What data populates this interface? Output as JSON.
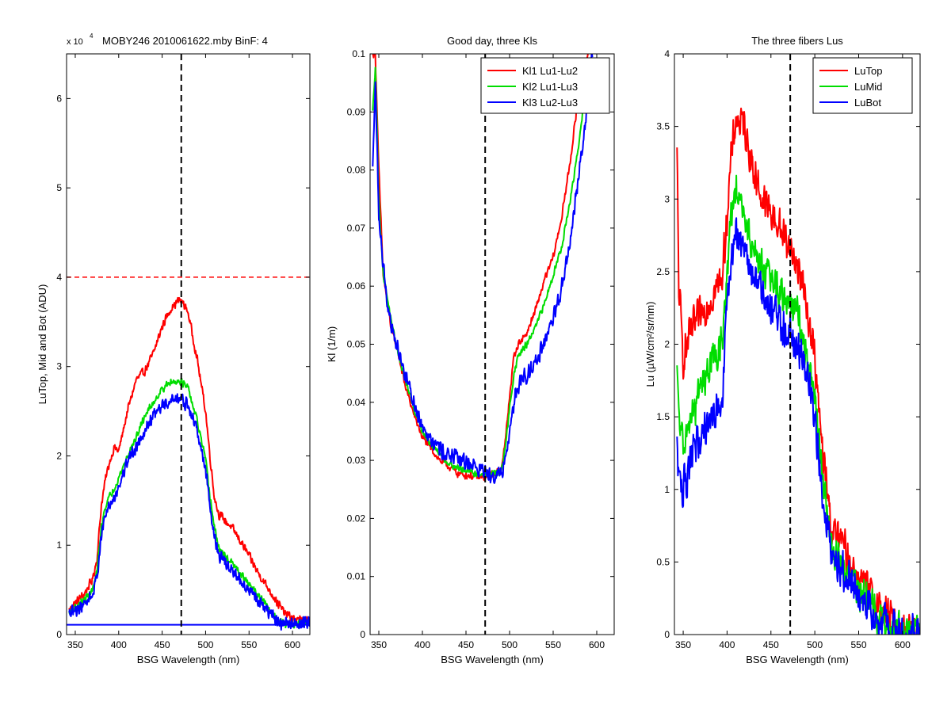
{
  "figure": {
    "colors": {
      "red": "#ff0000",
      "green": "#00dd00",
      "blue": "#0000ff",
      "black": "#000000"
    }
  },
  "chart_data": [
    {
      "type": "line",
      "title": "MOBY246  2010061622.mby BinF: 4",
      "xlabel": "BSG Wavelength (nm)",
      "ylabel": "LuTop, Mid and Bot (ADU)",
      "exponent_label": "x 10",
      "exponent_power": "4",
      "xlim": [
        340,
        620
      ],
      "ylim": [
        0,
        6.5
      ],
      "xticks": [
        350,
        400,
        450,
        500,
        550,
        600
      ],
      "yticks": [
        0,
        1,
        2,
        3,
        4,
        5,
        6
      ],
      "grid": false,
      "legend": null,
      "vline": {
        "x": 472,
        "style": "dashed",
        "color": "#000000"
      },
      "hlines": [
        {
          "y": 4.0,
          "style": "dashed",
          "color": "#ff0000"
        },
        {
          "y": 0.11,
          "style": "solid",
          "color": "#0000ff"
        }
      ],
      "series": [
        {
          "color": "#ff0000",
          "noise": 0.06,
          "x": [
            343,
            350,
            360,
            370,
            375,
            380,
            385,
            390,
            395,
            400,
            410,
            420,
            430,
            440,
            450,
            460,
            470,
            475,
            480,
            490,
            500,
            505,
            510,
            515,
            520,
            530,
            540,
            550,
            560,
            570,
            580,
            590,
            600,
            610,
            620
          ],
          "y": [
            0.28,
            0.35,
            0.45,
            0.62,
            0.85,
            1.45,
            1.75,
            1.95,
            2.1,
            2.05,
            2.5,
            2.85,
            2.95,
            3.15,
            3.45,
            3.65,
            3.75,
            3.7,
            3.6,
            3.1,
            2.5,
            2.0,
            1.55,
            1.35,
            1.3,
            1.2,
            1.05,
            0.88,
            0.7,
            0.55,
            0.4,
            0.25,
            0.18,
            0.16,
            0.15
          ]
        },
        {
          "color": "#00dd00",
          "noise": 0.05,
          "x": [
            343,
            350,
            360,
            370,
            375,
            380,
            385,
            390,
            395,
            400,
            410,
            420,
            430,
            440,
            450,
            460,
            470,
            475,
            480,
            490,
            500,
            505,
            510,
            515,
            520,
            530,
            540,
            550,
            560,
            570,
            580,
            590,
            600,
            610,
            620
          ],
          "y": [
            0.25,
            0.3,
            0.38,
            0.5,
            0.7,
            1.2,
            1.45,
            1.55,
            1.65,
            1.75,
            2.0,
            2.2,
            2.45,
            2.6,
            2.75,
            2.82,
            2.85,
            2.8,
            2.75,
            2.4,
            1.95,
            1.55,
            1.2,
            0.98,
            0.9,
            0.8,
            0.68,
            0.56,
            0.45,
            0.32,
            0.2,
            0.12,
            0.12,
            0.12,
            0.12
          ]
        },
        {
          "color": "#0000ff",
          "noise": 0.09,
          "x": [
            343,
            350,
            360,
            370,
            375,
            380,
            385,
            390,
            395,
            400,
            410,
            420,
            430,
            440,
            450,
            460,
            470,
            475,
            480,
            490,
            500,
            505,
            510,
            515,
            520,
            530,
            540,
            550,
            560,
            570,
            580,
            590,
            600,
            610,
            620
          ],
          "y": [
            0.22,
            0.27,
            0.34,
            0.45,
            0.65,
            1.1,
            1.35,
            1.45,
            1.55,
            1.65,
            1.95,
            2.1,
            2.3,
            2.45,
            2.55,
            2.62,
            2.65,
            2.6,
            2.55,
            2.3,
            1.85,
            1.45,
            1.1,
            0.9,
            0.82,
            0.72,
            0.6,
            0.5,
            0.38,
            0.27,
            0.17,
            0.12,
            0.12,
            0.12,
            0.12
          ]
        }
      ]
    },
    {
      "type": "line",
      "title": "Good day, three Kls",
      "xlabel": "BSG Wavelength (nm)",
      "ylabel": "Kl (1/m)",
      "xlim": [
        340,
        620
      ],
      "ylim": [
        0,
        0.1
      ],
      "xticks": [
        350,
        400,
        450,
        500,
        550,
        600
      ],
      "yticks": [
        0,
        0.01,
        0.02,
        0.03,
        0.04,
        0.05,
        0.06,
        0.07,
        0.08,
        0.09,
        0.1
      ],
      "ytick_labels": [
        "0",
        "0.01",
        "0.02",
        "0.03",
        "0.04",
        "0.05",
        "0.06",
        "0.07",
        "0.08",
        "0.09",
        "0.1"
      ],
      "grid": false,
      "legend": {
        "position": "top-right",
        "entries": [
          "Kl1 Lu1-Lu2",
          "Kl2 Lu1-Lu3",
          "Kl3 Lu2-Lu3"
        ]
      },
      "vline": {
        "x": 472,
        "style": "dashed",
        "color": "#000000"
      },
      "hlines": [],
      "series": [
        {
          "name": "Kl1 Lu1-Lu2",
          "color": "#ff0000",
          "noise": 0.0008,
          "x": [
            343,
            346,
            350,
            355,
            360,
            365,
            370,
            380,
            390,
            400,
            410,
            420,
            430,
            440,
            450,
            460,
            470,
            475,
            480,
            485,
            490,
            495,
            500,
            505,
            510,
            520,
            530,
            540,
            550,
            560,
            570,
            580,
            590
          ],
          "y": [
            0.1,
            0.1,
            0.08,
            0.062,
            0.057,
            0.052,
            0.05,
            0.043,
            0.038,
            0.034,
            0.032,
            0.03,
            0.029,
            0.0278,
            0.0275,
            0.0272,
            0.027,
            0.0272,
            0.0275,
            0.0278,
            0.0285,
            0.033,
            0.041,
            0.048,
            0.05,
            0.052,
            0.056,
            0.061,
            0.065,
            0.072,
            0.082,
            0.094,
            0.1
          ]
        },
        {
          "name": "Kl2 Lu1-Lu3",
          "color": "#00dd00",
          "noise": 0.0007,
          "x": [
            343,
            346,
            350,
            355,
            360,
            365,
            370,
            380,
            390,
            400,
            410,
            420,
            430,
            440,
            450,
            460,
            470,
            475,
            480,
            485,
            490,
            495,
            500,
            505,
            510,
            520,
            530,
            540,
            550,
            560,
            570,
            580,
            590
          ],
          "y": [
            0.09,
            0.098,
            0.075,
            0.062,
            0.058,
            0.053,
            0.05,
            0.044,
            0.039,
            0.035,
            0.033,
            0.031,
            0.0295,
            0.0288,
            0.0282,
            0.0278,
            0.0276,
            0.0276,
            0.0277,
            0.0278,
            0.028,
            0.032,
            0.039,
            0.045,
            0.048,
            0.05,
            0.053,
            0.057,
            0.062,
            0.067,
            0.075,
            0.085,
            0.098
          ]
        },
        {
          "name": "Kl3 Lu2-Lu3",
          "color": "#0000ff",
          "noise": 0.0018,
          "x": [
            343,
            346,
            350,
            355,
            360,
            365,
            370,
            380,
            390,
            400,
            410,
            420,
            430,
            440,
            450,
            460,
            470,
            475,
            480,
            485,
            490,
            495,
            500,
            505,
            510,
            520,
            530,
            540,
            550,
            560,
            570,
            580,
            590,
            595
          ],
          "y": [
            0.08,
            0.095,
            0.072,
            0.064,
            0.057,
            0.053,
            0.05,
            0.045,
            0.04,
            0.036,
            0.034,
            0.032,
            0.031,
            0.0302,
            0.0298,
            0.029,
            0.0282,
            0.0279,
            0.0277,
            0.0277,
            0.0278,
            0.03,
            0.035,
            0.04,
            0.043,
            0.045,
            0.047,
            0.05,
            0.054,
            0.06,
            0.068,
            0.08,
            0.092,
            0.1
          ]
        }
      ]
    },
    {
      "type": "line",
      "title": "The three fibers Lus",
      "xlabel": "BSG Wavelength (nm)",
      "ylabel": "Lu (µW/cm²/sr/nm)",
      "xlim": [
        340,
        620
      ],
      "ylim": [
        0,
        4
      ],
      "xticks": [
        350,
        400,
        450,
        500,
        550,
        600
      ],
      "yticks": [
        0,
        0.5,
        1,
        1.5,
        2,
        2.5,
        3,
        3.5,
        4
      ],
      "ytick_labels": [
        "0",
        "0.5",
        "1",
        "1.5",
        "2",
        "2.5",
        "3",
        "3.5",
        "4"
      ],
      "grid": false,
      "legend": {
        "position": "top-right",
        "entries": [
          "LuTop",
          "LuMid",
          "LuBot"
        ]
      },
      "vline": {
        "x": 472,
        "style": "dashed",
        "color": "#000000"
      },
      "hlines": [],
      "series": [
        {
          "name": "LuTop",
          "color": "#ff0000",
          "noise": 0.16,
          "x": [
            343,
            345,
            350,
            360,
            370,
            380,
            390,
            395,
            400,
            405,
            410,
            420,
            430,
            440,
            450,
            460,
            470,
            475,
            480,
            490,
            500,
            505,
            510,
            515,
            520,
            530,
            540,
            550,
            560,
            570,
            580,
            590,
            600,
            610,
            620
          ],
          "y": [
            3.3,
            2.4,
            1.9,
            2.1,
            2.2,
            2.3,
            2.4,
            2.5,
            2.9,
            3.3,
            3.55,
            3.5,
            3.2,
            3.0,
            2.9,
            2.8,
            2.7,
            2.6,
            2.55,
            2.3,
            1.9,
            1.5,
            1.2,
            0.95,
            0.7,
            0.65,
            0.5,
            0.4,
            0.3,
            0.22,
            0.15,
            0.08,
            0.04,
            0.03,
            0.03
          ]
        },
        {
          "name": "LuMid",
          "color": "#00dd00",
          "noise": 0.15,
          "x": [
            343,
            345,
            350,
            360,
            370,
            380,
            390,
            395,
            400,
            405,
            410,
            420,
            430,
            440,
            450,
            460,
            470,
            475,
            480,
            490,
            500,
            505,
            510,
            515,
            520,
            530,
            540,
            550,
            560,
            570,
            580,
            590,
            600,
            610,
            620
          ],
          "y": [
            1.8,
            1.5,
            1.3,
            1.5,
            1.7,
            1.85,
            1.95,
            2.0,
            2.5,
            2.9,
            3.05,
            2.85,
            2.65,
            2.55,
            2.45,
            2.35,
            2.3,
            2.25,
            2.2,
            1.95,
            1.65,
            1.3,
            1.0,
            0.78,
            0.58,
            0.5,
            0.4,
            0.3,
            0.22,
            0.15,
            0.09,
            0.04,
            0.02,
            0.02,
            0.02
          ]
        },
        {
          "name": "LuBot",
          "color": "#0000ff",
          "noise": 0.17,
          "x": [
            343,
            345,
            350,
            360,
            370,
            380,
            390,
            395,
            400,
            405,
            410,
            420,
            430,
            440,
            450,
            460,
            470,
            475,
            480,
            490,
            500,
            505,
            510,
            515,
            520,
            530,
            540,
            550,
            560,
            570,
            580,
            590,
            600,
            610,
            620
          ],
          "y": [
            1.3,
            1.1,
            1.0,
            1.2,
            1.4,
            1.5,
            1.55,
            1.6,
            2.3,
            2.6,
            2.75,
            2.65,
            2.45,
            2.35,
            2.25,
            2.15,
            2.1,
            2.05,
            2.0,
            1.85,
            1.55,
            1.2,
            0.9,
            0.7,
            0.52,
            0.45,
            0.36,
            0.27,
            0.2,
            0.13,
            0.07,
            0.03,
            0.02,
            0.02,
            0.02
          ]
        }
      ]
    }
  ]
}
